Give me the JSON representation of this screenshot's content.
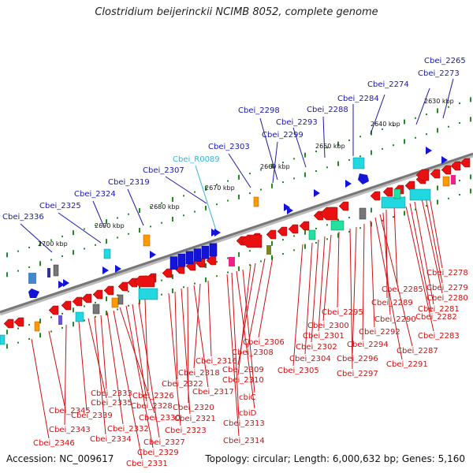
{
  "title": "Clostridium beijerinckii NCIMB 8052, complete genome",
  "footer": {
    "accession": "Accession: NC_009617",
    "topology": "Topology: circular; Length: 6,000,632 bp; Genes: 5,160"
  },
  "colors": {
    "forward_label": "#1a1aa8",
    "rna_label": "#33b5d6",
    "reverse_label": "#cc1111",
    "backbone": "#777777",
    "tick": "#228b22"
  },
  "scale_labels": [
    "2630 kbp",
    "2640 kbp",
    "2650 kbp",
    "2660 kbp",
    "2670 kbp",
    "2680 kbp",
    "2690 kbp",
    "2700 kbp"
  ],
  "top_labels": [
    {
      "text": "Cbei_2265",
      "kind": "forward"
    },
    {
      "text": "Cbei_2273",
      "kind": "forward"
    },
    {
      "text": "Cbei_2274",
      "kind": "forward"
    },
    {
      "text": "Cbei_2284",
      "kind": "forward"
    },
    {
      "text": "Cbei_2288",
      "kind": "forward"
    },
    {
      "text": "Cbei_2293",
      "kind": "forward"
    },
    {
      "text": "Cbei_2298",
      "kind": "forward"
    },
    {
      "text": "Cbei_2299",
      "kind": "forward"
    },
    {
      "text": "Cbei_2303",
      "kind": "forward"
    },
    {
      "text": "Cbei_R0089",
      "kind": "rna"
    },
    {
      "text": "Cbei_2307",
      "kind": "forward"
    },
    {
      "text": "Cbei_2319",
      "kind": "forward"
    },
    {
      "text": "Cbei_2324",
      "kind": "forward"
    },
    {
      "text": "Cbei_2325",
      "kind": "forward"
    },
    {
      "text": "Cbei_2336",
      "kind": "forward"
    }
  ],
  "bottom_labels": [
    "Cbei_2278",
    "Cbei_2279",
    "Cbei_2280",
    "Cbei_2281",
    "Cbei_2282",
    "Cbei_2283",
    "Cbei_2285",
    "Cbei_2289",
    "Cbei_2290",
    "Cbei_2287",
    "Cbei_2291",
    "Cbei_2292",
    "Cbei_2294",
    "Cbei_2296",
    "Cbei_2297",
    "Cbei_2295",
    "Cbei_2300",
    "Cbei_2301",
    "Cbei_2302",
    "Cbei_2304",
    "Cbei_2305",
    "Cbei_2306",
    "Cbei_2308",
    "Cbei_2309",
    "Cbei_2310",
    "cbiC",
    "cbiD",
    "Cbei_2313",
    "Cbei_2314",
    "Cbei_2316",
    "Cbei_2318",
    "Cbei_2317",
    "Cbei_2320",
    "Cbei_2321",
    "Cbei_2322",
    "Cbei_2323",
    "Cbei_2326",
    "Cbei_2327",
    "Cbei_2328",
    "Cbei_2329",
    "Cbei_2330",
    "Cbei_2331",
    "Cbei_2332",
    "Cbei_2333",
    "Cbei_2334",
    "Cbei_2335",
    "Cbei_2339",
    "Cbei_2343",
    "Cbei_2345",
    "Cbei_2346"
  ]
}
